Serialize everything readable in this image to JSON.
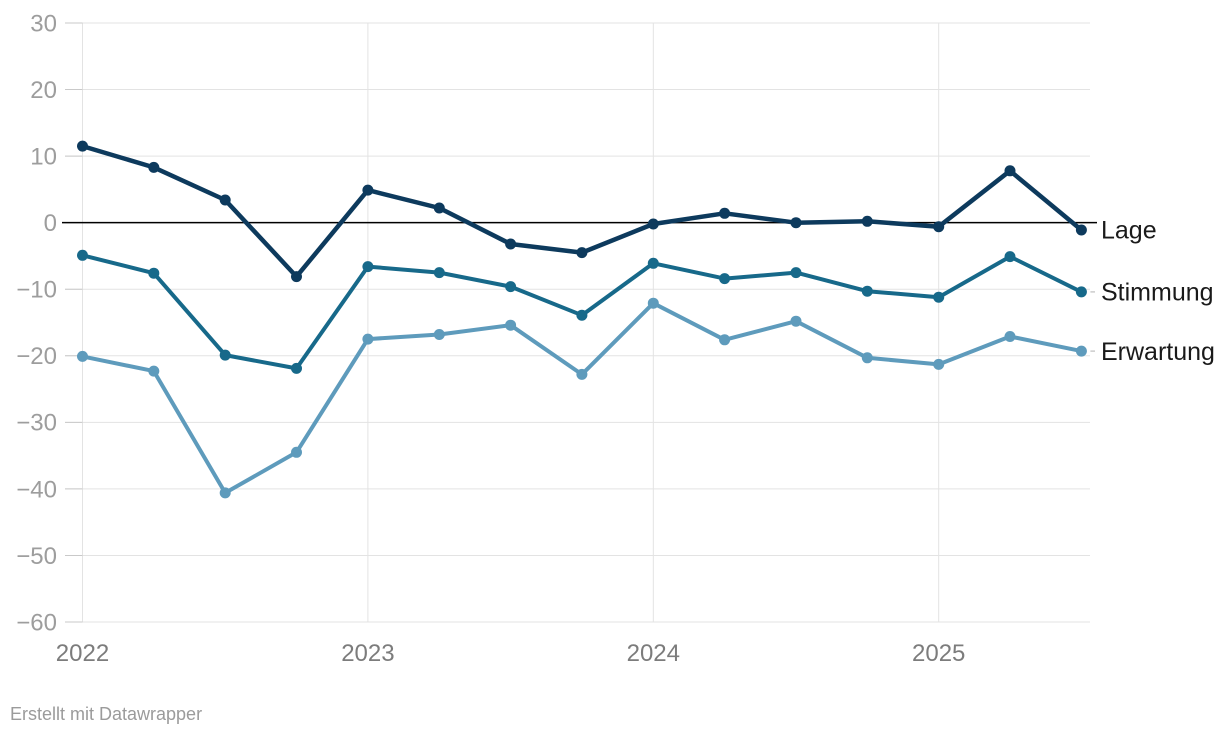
{
  "attribution": "Erstellt mit Datawrapper",
  "chart_data": {
    "type": "line",
    "title": "",
    "x_unit": "quarter",
    "categories": [
      "2022 Q1",
      "2022 Q2",
      "2022 Q3",
      "2022 Q4",
      "2023 Q1",
      "2023 Q2",
      "2023 Q3",
      "2023 Q4",
      "2024 Q1",
      "2024 Q2",
      "2024 Q3",
      "2024 Q4",
      "2025 Q1",
      "2025 Q2",
      "2025 Q3"
    ],
    "series": [
      {
        "name": "Lage",
        "color": "#0d3a5d",
        "values": [
          11.5,
          8.3,
          3.4,
          -8.1,
          4.9,
          2.2,
          -3.2,
          -4.5,
          -0.2,
          1.4,
          0,
          0.2,
          -0.6,
          7.8,
          -1.1
        ]
      },
      {
        "name": "Stimmung",
        "color": "#17698a",
        "values": [
          -4.9,
          -7.6,
          -19.9,
          -21.9,
          -6.6,
          -7.5,
          -9.6,
          -13.9,
          -6.1,
          -8.4,
          -7.5,
          -10.3,
          -11.2,
          -5.1,
          -10.4
        ]
      },
      {
        "name": "Erwartung",
        "color": "#5e9bbc",
        "values": [
          -20.1,
          -22.3,
          -40.6,
          -34.5,
          -17.5,
          -16.8,
          -15.4,
          -22.8,
          -12.1,
          -17.6,
          -14.8,
          -20.3,
          -21.3,
          -17.1,
          -19.3
        ]
      }
    ],
    "ylim": [
      -60,
      30
    ],
    "y_ticks": [
      30,
      20,
      10,
      0,
      -10,
      -20,
      -30,
      -40,
      -50,
      -60
    ],
    "x_ticks": [
      {
        "label": "2022",
        "position": 0
      },
      {
        "label": "2023",
        "position": 4
      },
      {
        "label": "2024",
        "position": 8
      },
      {
        "label": "2025",
        "position": 12
      }
    ],
    "grid": true,
    "zero_line": true,
    "legend_position": "direct-labels-right",
    "colors": {
      "grid": "#e3e3e3",
      "axis_tick": "#c9c9c9",
      "zero_line": "#000000",
      "connector": "#cccccc",
      "y_tick_text": "#9d9d9d",
      "x_tick_text": "#7c7c7c",
      "series_label_text": "#1a1a1a"
    }
  }
}
